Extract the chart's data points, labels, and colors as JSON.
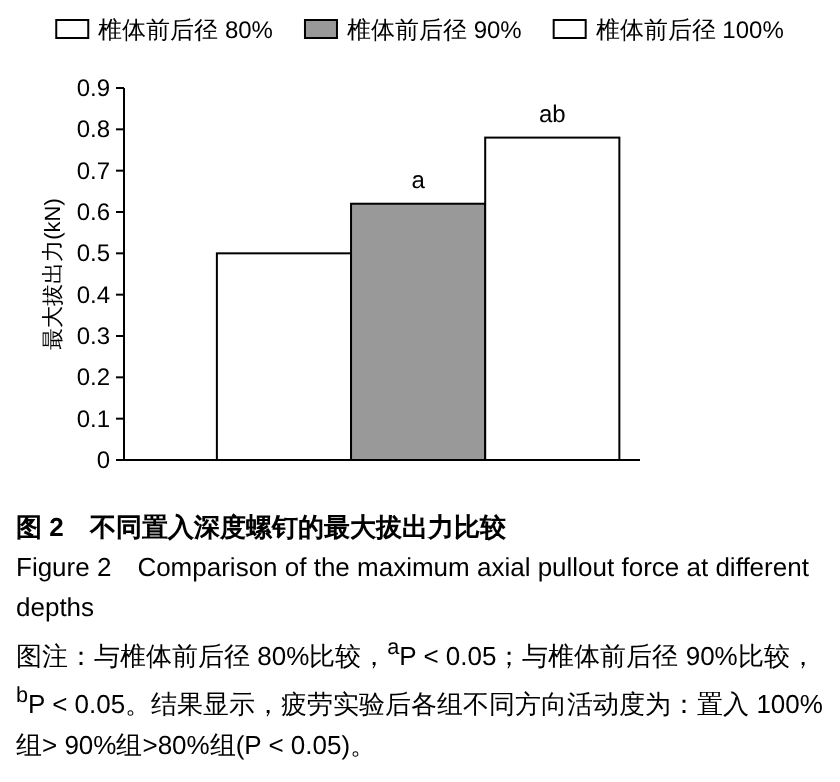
{
  "chart_data": {
    "type": "bar",
    "title": "图 2　不同置入深度螺钉的最大拔出力比较",
    "subtitle": "Figure 2　Comparison of the maximum axial pullout force at different depths",
    "annotations": [
      "图注：与椎体前后径 80%比较，$^{a}$P < 0.05；与椎体前后径 90%比较，$^{b}$P < 0.05。结果显示，疲劳实验后各组不同方向活动度为：置入 100%组> 90%组>80%组(P < 0.05)。"
    ],
    "ylabel": "最大拔出力(kN)",
    "categories": [
      null
    ],
    "series": [
      {
        "name": "椎体前后径 80%",
        "color": "#ffffff",
        "values": [
          0.5
        ],
        "value_labels": [
          null
        ]
      },
      {
        "name": "椎体前后径 90%",
        "color": "#999999",
        "values": [
          0.62
        ],
        "value_labels": [
          "a"
        ]
      },
      {
        "name": "椎体前后径 100%",
        "color": "#ffffff",
        "values": [
          0.78
        ],
        "value_labels": [
          "ab"
        ]
      }
    ],
    "ylim": [
      0,
      0.9
    ],
    "yticks": [
      0,
      0.1,
      0.2,
      0.3,
      0.4,
      0.5,
      0.6,
      0.7,
      0.8,
      0.9
    ],
    "legend": "top",
    "grid": false
  }
}
